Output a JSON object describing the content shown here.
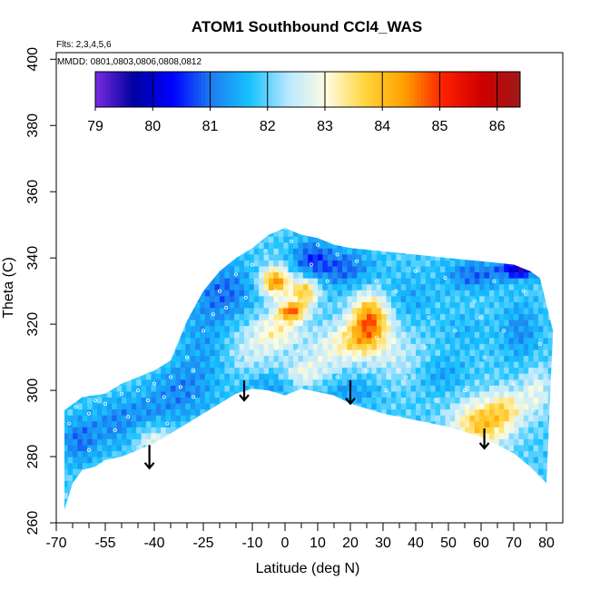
{
  "chart_data": {
    "type": "heatmap",
    "title": "ATOM1 Southbound CCl4_WAS",
    "annotations": [
      "Flts: 2,3,4,5,6",
      "MMDD: 0801,0803,0806,0808,0812"
    ],
    "xlabel": "Latitude (deg N)",
    "ylabel": "Theta (C)",
    "xlim": [
      -70,
      85
    ],
    "ylim": [
      260,
      402
    ],
    "x_ticks": [
      -70,
      -55,
      -40,
      -25,
      -10,
      0,
      10,
      20,
      30,
      40,
      50,
      60,
      70,
      80
    ],
    "x_tick_labels": [
      "-70",
      "-55",
      "-40",
      "-25",
      "-10",
      "0",
      "10",
      "20",
      "30",
      "40",
      "50",
      "60",
      "70",
      "80"
    ],
    "x_minor_ticks": [
      -65,
      -60,
      -50,
      -45,
      -35,
      -30,
      -20,
      -15,
      -5,
      5,
      15,
      25,
      35,
      45,
      55,
      65,
      75
    ],
    "y_ticks": [
      260,
      280,
      300,
      320,
      340,
      360,
      380,
      400
    ],
    "y_tick_labels": [
      "260",
      "280",
      "300",
      "320",
      "340",
      "360",
      "380",
      "400"
    ],
    "colorbar": {
      "range": [
        79,
        86.4
      ],
      "ticks": [
        79,
        80,
        81,
        82,
        83,
        84,
        85,
        86
      ],
      "tick_labels": [
        "79",
        "80",
        "81",
        "82",
        "83",
        "84",
        "85",
        "86"
      ],
      "colors": [
        "#7a2be0",
        "#0000a0",
        "#0000ff",
        "#1c7cf0",
        "#17c2ff",
        "#b9e8ff",
        "#fffce0",
        "#ffd43a",
        "#ffa000",
        "#ff2000",
        "#ce0000",
        "#a01818"
      ]
    },
    "field": {
      "background": 81.9,
      "lower_boundary": [
        [
          -67.5,
          264
        ],
        [
          -65,
          272
        ],
        [
          -62,
          276
        ],
        [
          -58,
          277
        ],
        [
          -55,
          279
        ],
        [
          -50,
          280
        ],
        [
          -45,
          282
        ],
        [
          -40,
          284
        ],
        [
          -35,
          287
        ],
        [
          -30,
          290
        ],
        [
          -25,
          293
        ],
        [
          -20,
          296
        ],
        [
          -15,
          299
        ],
        [
          -10,
          300.5
        ],
        [
          -5,
          300
        ],
        [
          0,
          298.5
        ],
        [
          5,
          300.5
        ],
        [
          10,
          299.5
        ],
        [
          15,
          298.5
        ],
        [
          20,
          296
        ],
        [
          30,
          293
        ],
        [
          40,
          291
        ],
        [
          50,
          289
        ],
        [
          60,
          286
        ],
        [
          70,
          281
        ],
        [
          75,
          277
        ],
        [
          80,
          272
        ]
      ],
      "upper_boundary": [
        [
          -67.5,
          294
        ],
        [
          -62,
          298
        ],
        [
          -55,
          299
        ],
        [
          -50,
          302
        ],
        [
          -45,
          304
        ],
        [
          -40,
          306
        ],
        [
          -35,
          309
        ],
        [
          -30,
          321
        ],
        [
          -25,
          330
        ],
        [
          -20,
          336
        ],
        [
          -15,
          340
        ],
        [
          -10,
          343
        ],
        [
          -5,
          347
        ],
        [
          0,
          349
        ],
        [
          5,
          347
        ],
        [
          10,
          346
        ],
        [
          15,
          344
        ],
        [
          20,
          343
        ],
        [
          30,
          342
        ],
        [
          40,
          341
        ],
        [
          50,
          340
        ],
        [
          60,
          339
        ],
        [
          70,
          338
        ],
        [
          75,
          336
        ],
        [
          78,
          334
        ],
        [
          80,
          326
        ],
        [
          82,
          318
        ]
      ],
      "blobs": [
        {
          "x": -63,
          "y": 285,
          "sx": 4,
          "sy": 5,
          "v": -0.9
        },
        {
          "x": -52,
          "y": 290,
          "sx": 5,
          "sy": 5,
          "v": -0.7
        },
        {
          "x": -42,
          "y": 294,
          "sx": 5,
          "sy": 4,
          "v": -0.5
        },
        {
          "x": -40,
          "y": 285,
          "sx": 4,
          "sy": 3,
          "v": 0.9
        },
        {
          "x": -32,
          "y": 300,
          "sx": 6,
          "sy": 6,
          "v": -0.7
        },
        {
          "x": -25,
          "y": 315,
          "sx": 5,
          "sy": 10,
          "v": -0.5
        },
        {
          "x": -18,
          "y": 330,
          "sx": 6,
          "sy": 6,
          "v": -0.9
        },
        {
          "x": -10,
          "y": 312,
          "sx": 5,
          "sy": 6,
          "v": 0.6
        },
        {
          "x": -3,
          "y": 333,
          "sx": 3,
          "sy": 3,
          "v": 2.6
        },
        {
          "x": 2,
          "y": 324,
          "sx": 3,
          "sy": 2,
          "v": 2.5
        },
        {
          "x": 6,
          "y": 330,
          "sx": 3,
          "sy": 3,
          "v": 2.0
        },
        {
          "x": -2,
          "y": 318,
          "sx": 5,
          "sy": 4,
          "v": 1.2
        },
        {
          "x": 8,
          "y": 340,
          "sx": 4,
          "sy": 4,
          "v": -1.1
        },
        {
          "x": 12,
          "y": 310,
          "sx": 5,
          "sy": 5,
          "v": 0.6
        },
        {
          "x": 5,
          "y": 305,
          "sx": 4,
          "sy": 3,
          "v": 0.9
        },
        {
          "x": 18,
          "y": 337,
          "sx": 6,
          "sy": 4,
          "v": -1.0
        },
        {
          "x": 26,
          "y": 322,
          "sx": 4,
          "sy": 5,
          "v": 2.6
        },
        {
          "x": 22,
          "y": 315,
          "sx": 6,
          "sy": 4,
          "v": 1.5
        },
        {
          "x": 20,
          "y": 300,
          "sx": 6,
          "sy": 3,
          "v": -0.6
        },
        {
          "x": 35,
          "y": 310,
          "sx": 6,
          "sy": 6,
          "v": 0.5
        },
        {
          "x": 38,
          "y": 328,
          "sx": 6,
          "sy": 5,
          "v": -0.4
        },
        {
          "x": 48,
          "y": 305,
          "sx": 5,
          "sy": 4,
          "v": -0.5
        },
        {
          "x": 58,
          "y": 335,
          "sx": 6,
          "sy": 3,
          "v": -1.0
        },
        {
          "x": 72,
          "y": 337,
          "sx": 4,
          "sy": 2,
          "v": -2.2
        },
        {
          "x": 60,
          "y": 290,
          "sx": 6,
          "sy": 5,
          "v": 2.0
        },
        {
          "x": 68,
          "y": 295,
          "sx": 4,
          "sy": 4,
          "v": 1.2
        },
        {
          "x": 55,
          "y": 318,
          "sx": 5,
          "sy": 4,
          "v": -0.3
        },
        {
          "x": 72,
          "y": 318,
          "sx": 4,
          "sy": 6,
          "v": -0.7
        },
        {
          "x": 77,
          "y": 300,
          "sx": 3,
          "sy": 5,
          "v": 0.9
        },
        {
          "x": -5,
          "y": 302,
          "sx": 6,
          "sy": 3,
          "v": -0.6
        }
      ],
      "sample_points": [
        [
          -66,
          290
        ],
        [
          -64,
          295
        ],
        [
          -60,
          293
        ],
        [
          -58,
          297
        ],
        [
          -55,
          296
        ],
        [
          -50,
          299
        ],
        [
          -48,
          292
        ],
        [
          -45,
          300
        ],
        [
          -42,
          297
        ],
        [
          -40,
          302
        ],
        [
          -37,
          298
        ],
        [
          -35,
          304
        ],
        [
          -32,
          301
        ],
        [
          -30,
          310
        ],
        [
          -28,
          306
        ],
        [
          -25,
          318
        ],
        [
          -22,
          323
        ],
        [
          -20,
          330
        ],
        [
          -18,
          325
        ],
        [
          -15,
          335
        ],
        [
          -12,
          328
        ],
        [
          -10,
          338
        ],
        [
          -8,
          320
        ],
        [
          -6,
          342
        ],
        [
          -3,
          330
        ],
        [
          0,
          336
        ],
        [
          2,
          345
        ],
        [
          5,
          327
        ],
        [
          8,
          338
        ],
        [
          10,
          344
        ],
        [
          13,
          333
        ],
        [
          16,
          341
        ],
        [
          19,
          316
        ],
        [
          22,
          339
        ],
        [
          25,
          306
        ],
        [
          28,
          333
        ],
        [
          31,
          300
        ],
        [
          34,
          330
        ],
        [
          37,
          304
        ],
        [
          40,
          336
        ],
        [
          43,
          313
        ],
        [
          46,
          297
        ],
        [
          49,
          334
        ],
        [
          52,
          318
        ],
        [
          55,
          300
        ],
        [
          58,
          327
        ],
        [
          61,
          310
        ],
        [
          64,
          333
        ],
        [
          67,
          318
        ],
        [
          70,
          302
        ],
        [
          73,
          330
        ],
        [
          76,
          294
        ],
        [
          78,
          314
        ],
        [
          -44,
          283
        ],
        [
          -52,
          288
        ],
        [
          -60,
          282
        ],
        [
          -36,
          290
        ],
        [
          -28,
          298
        ],
        [
          -14,
          310
        ],
        [
          4,
          312
        ],
        [
          16,
          304
        ],
        [
          28,
          316
        ],
        [
          44,
          322
        ],
        [
          60,
          322
        ]
      ]
    },
    "arrows": [
      {
        "x": -41.5,
        "y_top": 283.5,
        "y_bottom": 276.5
      },
      {
        "x": -12.5,
        "y_top": 303,
        "y_bottom": 297
      },
      {
        "x": 20,
        "y_top": 303,
        "y_bottom": 296
      },
      {
        "x": 61,
        "y_top": 288.5,
        "y_bottom": 282.5
      }
    ]
  }
}
